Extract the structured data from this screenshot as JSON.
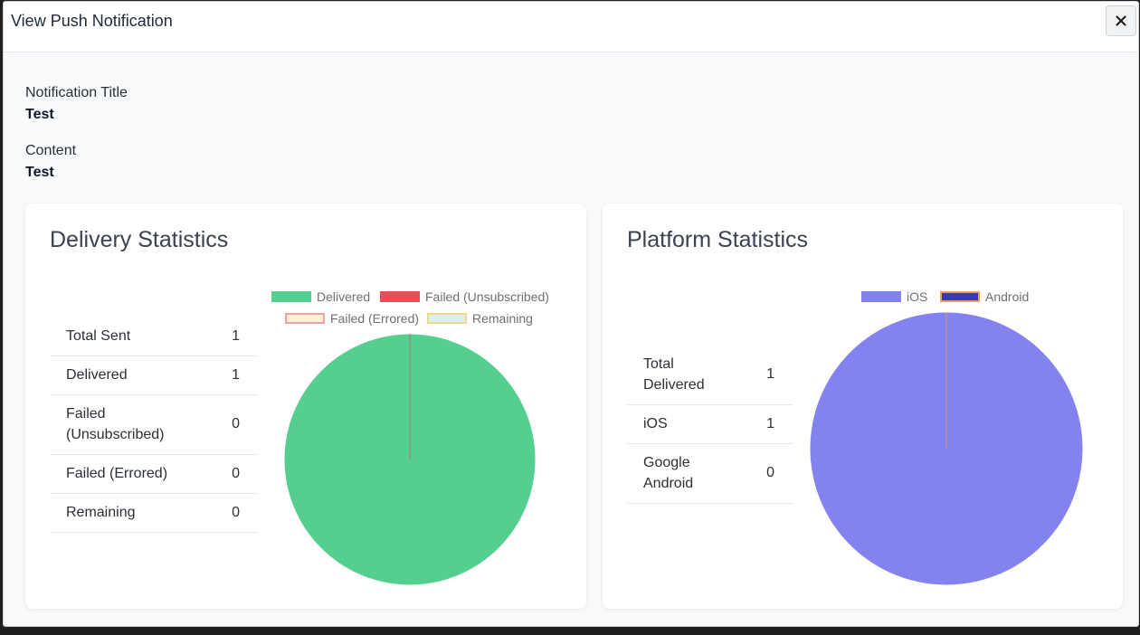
{
  "modal": {
    "title": "View Push Notification"
  },
  "notification": {
    "title_label": "Notification Title",
    "title_value": "Test",
    "content_label": "Content",
    "content_value": "Test"
  },
  "delivery": {
    "title": "Delivery Statistics",
    "rows": [
      {
        "label": "Total Sent",
        "value": "1"
      },
      {
        "label": "Delivered",
        "value": "1"
      },
      {
        "label": "Failed (Unsubscribed)",
        "value": "0"
      },
      {
        "label": "Failed (Errored)",
        "value": "0"
      },
      {
        "label": "Remaining",
        "value": "0"
      }
    ]
  },
  "platform": {
    "title": "Platform Statistics",
    "rows": [
      {
        "label": "Total Delivered",
        "value": "1"
      },
      {
        "label": "iOS",
        "value": "1"
      },
      {
        "label": "Google Android",
        "value": "0"
      }
    ]
  },
  "chart_data": [
    {
      "type": "pie",
      "title": "",
      "categories": [
        "Delivered",
        "Failed (Unsubscribed)",
        "Failed (Errored)",
        "Remaining"
      ],
      "values": [
        1,
        0,
        0,
        0
      ],
      "colors": [
        "#54cf8f",
        "#e94d56",
        "#fdf2d6",
        "#d9f1ee"
      ],
      "border_colors": [
        "#54cf8f",
        "#e94d56",
        "#f2a0a4",
        "#f2d68c"
      ],
      "legend_position": "top"
    },
    {
      "type": "pie",
      "title": "",
      "categories": [
        "iOS",
        "Android"
      ],
      "values": [
        1,
        0
      ],
      "colors": [
        "#8482ee",
        "#3a3bb0"
      ],
      "border_colors": [
        "#8482ee",
        "#e3a15d"
      ],
      "legend_position": "top"
    }
  ]
}
